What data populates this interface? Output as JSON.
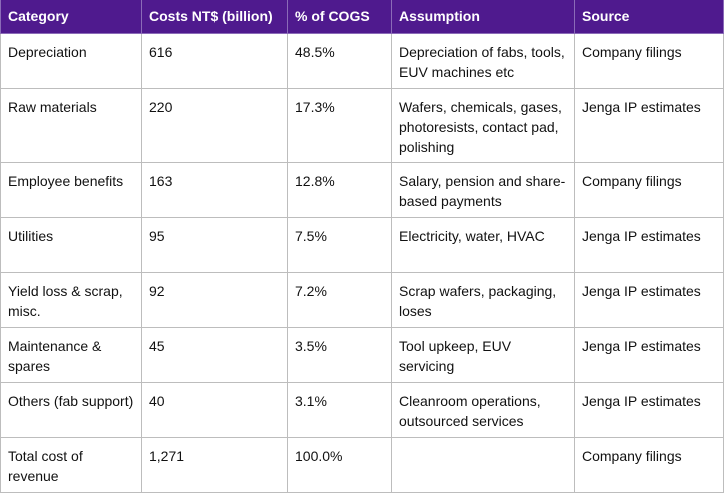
{
  "header_color": "#4f1a8e",
  "columns": [
    "Category",
    "Costs NT$ (billion)",
    "% of COGS",
    "Assumption",
    "Source"
  ],
  "rows": [
    {
      "category": "Depreciation",
      "cost": "616",
      "pct": "48.5%",
      "assumption": "Depreciation of fabs, tools, EUV machines etc",
      "source": "Company filings"
    },
    {
      "category": "Raw materials",
      "cost": "220",
      "pct": "17.3%",
      "assumption": "Wafers, chemicals, gases, photoresists, contact pad, polishing",
      "source": "Jenga IP estimates"
    },
    {
      "category": "Employee benefits",
      "cost": "163",
      "pct": "12.8%",
      "assumption": "Salary, pension and share-based payments",
      "source": "Company filings"
    },
    {
      "category": "Utilities",
      "cost": "95",
      "pct": "7.5%",
      "assumption": "Electricity, water, HVAC",
      "source": "Jenga IP estimates"
    },
    {
      "category": "Yield loss & scrap, misc.",
      "cost": "92",
      "pct": "7.2%",
      "assumption": "Scrap wafers, packaging, loses",
      "source": "Jenga IP estimates"
    },
    {
      "category": "Maintenance & spares",
      "cost": "45",
      "pct": "3.5%",
      "assumption": "Tool upkeep, EUV servicing",
      "source": "Jenga IP estimates"
    },
    {
      "category": "Others (fab support)",
      "cost": "40",
      "pct": "3.1%",
      "assumption": "Cleanroom operations, outsourced services",
      "source": "Jenga IP estimates"
    },
    {
      "category": "Total cost of revenue",
      "cost": "1,271",
      "pct": "100.0%",
      "assumption": "",
      "source": "Company filings"
    }
  ]
}
